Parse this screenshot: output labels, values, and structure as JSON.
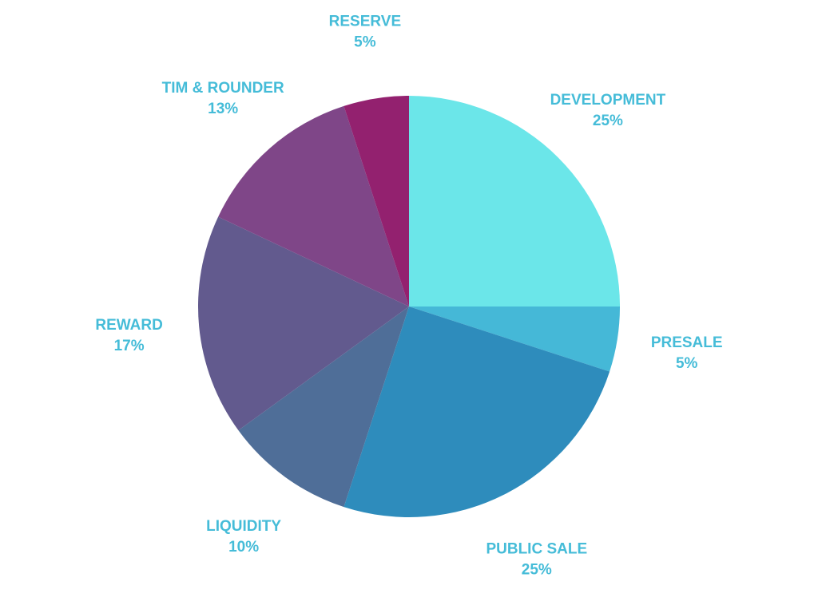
{
  "chart_data": {
    "type": "pie",
    "title": "",
    "legend": "none",
    "label_color": "#45BCD8",
    "start": "top",
    "direction": "clockwise",
    "slices": [
      {
        "label": "DEVELOPMENT",
        "value": 25,
        "value_label": "25%",
        "color": "#6BE6E9"
      },
      {
        "label": "PRESALE",
        "value": 5,
        "value_label": "5%",
        "color": "#45B8D7"
      },
      {
        "label": "PUBLIC SALE",
        "value": 25,
        "value_label": "25%",
        "color": "#2E8CBC"
      },
      {
        "label": "LIQUIDITY",
        "value": 10,
        "value_label": "10%",
        "color": "#4F6E98"
      },
      {
        "label": "REWARD",
        "value": 17,
        "value_label": "17%",
        "color": "#625A8E"
      },
      {
        "label": "TIM & ROUNDER",
        "value": 13,
        "value_label": "13%",
        "color": "#7F4688"
      },
      {
        "label": "RESERVE",
        "value": 5,
        "value_label": "5%",
        "color": "#93216F"
      }
    ]
  }
}
